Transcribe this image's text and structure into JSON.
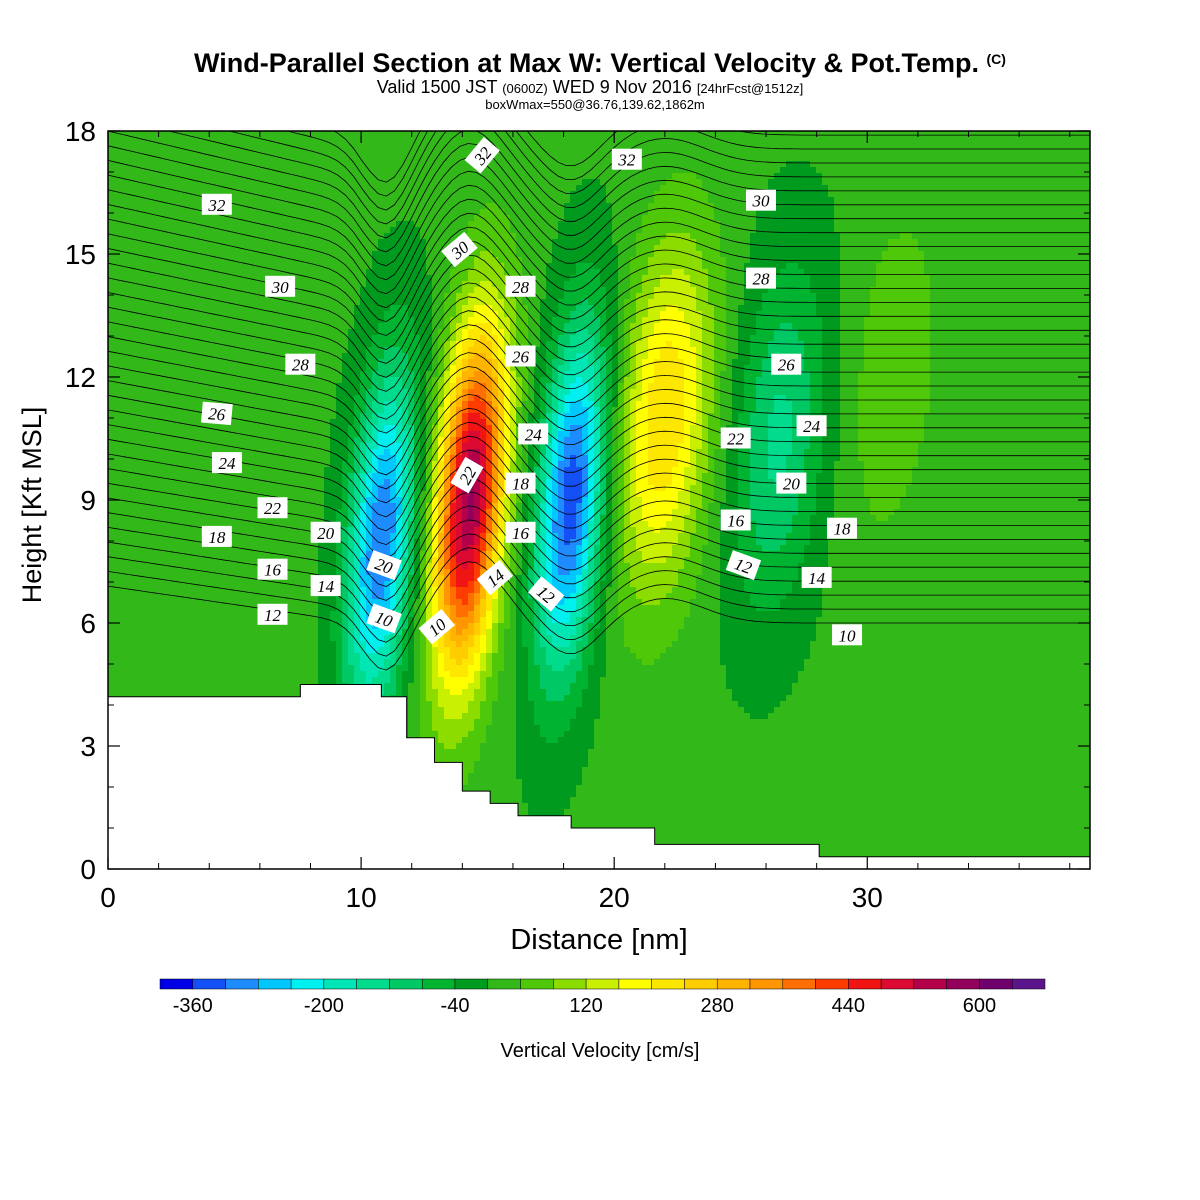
{
  "title": {
    "main": "Wind-Parallel Section at Max W: Vertical Velocity & Pot.Temp.",
    "copyright": "(C)",
    "valid_prefix": "Valid 1500 JST",
    "valid_z": "(0600Z)",
    "valid_suffix": "WED 9 Nov 2016",
    "forecast": "[24hrFcst@1512z]",
    "box": "boxWmax=550@36.76,139.62,1862m"
  },
  "chart_data": {
    "type": "heatmap",
    "xlabel": "Distance [nm]",
    "ylabel": "Height [Kft MSL]",
    "xlim": [
      0,
      38.8
    ],
    "ylim": [
      0,
      18
    ],
    "x_ticks": [
      0,
      10,
      20,
      30
    ],
    "y_ticks": [
      0,
      3,
      6,
      9,
      12,
      15,
      18
    ],
    "colorbar": {
      "label": "Vertical Velocity [cm/s]",
      "tick_labels": [
        "-360",
        "-200",
        "-40",
        "120",
        "280",
        "440",
        "600"
      ],
      "levels": [
        -400,
        -360,
        -320,
        -280,
        -240,
        -200,
        -160,
        -120,
        -80,
        -40,
        0,
        40,
        80,
        120,
        160,
        200,
        240,
        280,
        320,
        360,
        400,
        440,
        480,
        520,
        560,
        600,
        640
      ],
      "colors": [
        "#0000e6",
        "#1450f5",
        "#1e8cff",
        "#00c8ff",
        "#00f0f0",
        "#00e6b4",
        "#00dc8c",
        "#00c864",
        "#00b432",
        "#009b1e",
        "#33b81a",
        "#50c80a",
        "#8cdc00",
        "#c8f000",
        "#ffff00",
        "#fde600",
        "#ffcc00",
        "#ffb400",
        "#ff9600",
        "#ff6e00",
        "#ff3c00",
        "#f01414",
        "#dc0a32",
        "#b4004b",
        "#91005a",
        "#70006e",
        "#5a148c"
      ]
    },
    "vertical_velocity_features": [
      {
        "x": 10.8,
        "z": 8.0,
        "w": -330
      },
      {
        "x": 14.3,
        "z": 9.0,
        "w": 560
      },
      {
        "x": 18.3,
        "z": 9.0,
        "w": -360
      },
      {
        "x": 22.0,
        "z": 11.0,
        "w": 230
      },
      {
        "x": 26.5,
        "z": 10.5,
        "w": -140
      },
      {
        "x": 31.0,
        "z": 12.0,
        "w": 60
      }
    ],
    "theta_contour_labels": [
      "32",
      "30",
      "28",
      "26",
      "24",
      "22",
      "20",
      "18",
      "16",
      "14",
      "12",
      "10",
      "32",
      "30",
      "28",
      "26",
      "24",
      "22",
      "20",
      "18",
      "16",
      "14",
      "12",
      "10",
      "32",
      "30",
      "28",
      "26",
      "24",
      "22",
      "20",
      "18",
      "16",
      "14",
      "12",
      "10"
    ],
    "terrain_height_kft": [
      [
        0,
        4.2
      ],
      [
        7.6,
        4.2
      ],
      [
        7.6,
        4.5
      ],
      [
        10.8,
        4.5
      ],
      [
        10.8,
        4.2
      ],
      [
        11.8,
        4.2
      ],
      [
        11.8,
        3.2
      ],
      [
        12.9,
        3.2
      ],
      [
        12.9,
        2.6
      ],
      [
        14.0,
        2.6
      ],
      [
        14.0,
        1.9
      ],
      [
        15.1,
        1.9
      ],
      [
        15.1,
        1.6
      ],
      [
        16.2,
        1.6
      ],
      [
        16.2,
        1.3
      ],
      [
        18.3,
        1.3
      ],
      [
        18.3,
        1.0
      ],
      [
        21.6,
        1.0
      ],
      [
        21.6,
        0.6
      ],
      [
        28.1,
        0.6
      ],
      [
        28.1,
        0.3
      ],
      [
        38.8,
        0.3
      ]
    ]
  }
}
